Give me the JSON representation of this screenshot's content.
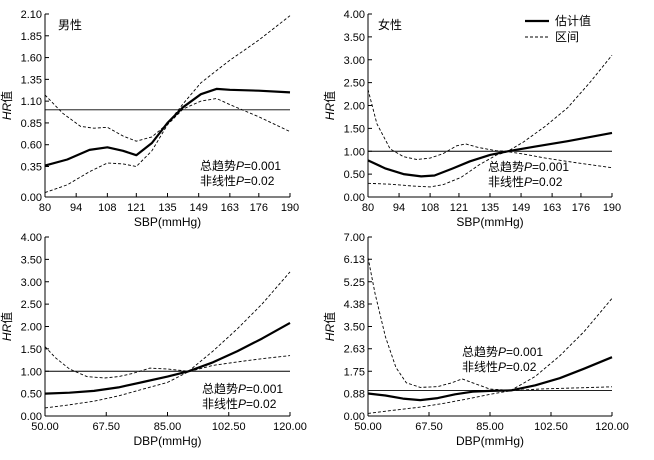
{
  "legend": {
    "entries": [
      {
        "label": "估计值",
        "style": "solid"
      },
      {
        "label": "区间",
        "style": "dashed"
      }
    ]
  },
  "chart_data": [
    {
      "type": "line",
      "panel_label": "男性",
      "xlabel": "SBP(mmHg)",
      "ylabel_italic": "HR",
      "ylabel_suffix": "值",
      "xlim": [
        80,
        190
      ],
      "ylim": [
        0,
        2.1
      ],
      "xticks": [
        80,
        94,
        108,
        121,
        135,
        149,
        163,
        176,
        190
      ],
      "xtick_labels": [
        "80",
        "94",
        "108",
        "121",
        "135",
        "149",
        "163",
        "176",
        "190"
      ],
      "yticks": [
        0,
        0.35,
        0.6,
        0.85,
        1.1,
        1.35,
        1.6,
        1.85,
        2.1
      ],
      "ytick_labels": [
        "0.00",
        "0.35",
        "0.60",
        "0.85",
        "1.10",
        "1.35",
        "1.60",
        "1.85",
        "2.10"
      ],
      "reference_line": 1.0,
      "annotation_lines": [
        "总趋势P=0.001",
        "非线性P=0.02"
      ],
      "series": [
        {
          "name": "估计值",
          "style": "solid",
          "x": [
            80,
            90,
            100,
            108,
            115,
            121,
            128,
            135,
            142,
            150,
            157,
            163,
            176,
            190
          ],
          "y": [
            0.36,
            0.43,
            0.54,
            0.57,
            0.53,
            0.48,
            0.62,
            0.85,
            1.03,
            1.18,
            1.24,
            1.23,
            1.22,
            1.2
          ]
        },
        {
          "name": "区间-上限",
          "style": "dashed",
          "x": [
            80,
            88,
            96,
            102,
            108,
            115,
            121,
            128,
            135,
            142,
            150,
            157,
            163,
            176,
            190
          ],
          "y": [
            1.17,
            0.96,
            0.81,
            0.79,
            0.8,
            0.7,
            0.64,
            0.69,
            0.84,
            1.07,
            1.31,
            1.45,
            1.57,
            1.8,
            2.08
          ]
        },
        {
          "name": "区间-下限",
          "style": "dashed",
          "x": [
            80,
            90,
            100,
            108,
            115,
            121,
            128,
            135,
            142,
            150,
            157,
            163,
            176,
            190
          ],
          "y": [
            0.05,
            0.14,
            0.29,
            0.39,
            0.38,
            0.35,
            0.53,
            0.83,
            1.01,
            1.1,
            1.13,
            1.06,
            0.92,
            0.75
          ]
        }
      ]
    },
    {
      "type": "line",
      "panel_label": "女性",
      "xlabel": "SBP(mmHg)",
      "ylabel_italic": "HR",
      "ylabel_suffix": "值",
      "xlim": [
        80,
        190
      ],
      "ylim": [
        0,
        4.0
      ],
      "xticks": [
        80,
        94,
        108,
        121,
        135,
        149,
        163,
        176,
        190
      ],
      "xtick_labels": [
        "80",
        "94",
        "108",
        "121",
        "135",
        "149",
        "163",
        "176",
        "190"
      ],
      "yticks": [
        0,
        0.5,
        1.0,
        1.5,
        2.0,
        2.5,
        3.0,
        3.5,
        4.0
      ],
      "ytick_labels": [
        "0.00",
        "0.50",
        "1.00",
        "1.50",
        "2.00",
        "2.50",
        "3.00",
        "3.50",
        "4.00"
      ],
      "reference_line": 1.0,
      "annotation_lines": [
        "总趋势P=0.001",
        "非线性P=0.02"
      ],
      "series": [
        {
          "name": "估计值",
          "style": "solid",
          "x": [
            80,
            88,
            96,
            104,
            110,
            118,
            126,
            135,
            143,
            155,
            170,
            190
          ],
          "y": [
            0.8,
            0.62,
            0.5,
            0.45,
            0.47,
            0.62,
            0.78,
            0.92,
            1.0,
            1.1,
            1.22,
            1.4
          ]
        },
        {
          "name": "区间-上限",
          "style": "dashed",
          "x": [
            80,
            84,
            90,
            96,
            102,
            108,
            114,
            120,
            124,
            130,
            138,
            143,
            150,
            160,
            170,
            180,
            190
          ],
          "y": [
            2.35,
            1.6,
            1.05,
            0.88,
            0.82,
            0.85,
            0.95,
            1.12,
            1.16,
            1.08,
            1.01,
            1.0,
            1.2,
            1.55,
            1.95,
            2.5,
            3.1
          ]
        },
        {
          "name": "区间-下限",
          "style": "dashed",
          "x": [
            80,
            90,
            100,
            108,
            114,
            122,
            130,
            138,
            143,
            150,
            160,
            175,
            190
          ],
          "y": [
            0.3,
            0.28,
            0.24,
            0.22,
            0.27,
            0.43,
            0.7,
            0.92,
            0.99,
            0.94,
            0.85,
            0.74,
            0.64
          ]
        }
      ]
    },
    {
      "type": "line",
      "panel_label": "",
      "xlabel": "DBP(mmHg)",
      "ylabel_italic": "HR",
      "ylabel_suffix": "值",
      "xlim": [
        50,
        120
      ],
      "ylim": [
        0,
        4.0
      ],
      "xticks": [
        50,
        67.5,
        85,
        102.5,
        120
      ],
      "xtick_labels": [
        "50.00",
        "67.50",
        "85.00",
        "102.50",
        "120.00"
      ],
      "yticks": [
        0,
        0.5,
        1.0,
        1.5,
        2.0,
        2.5,
        3.0,
        3.5,
        4.0
      ],
      "ytick_labels": [
        "0.00",
        "0.50",
        "1.00",
        "1.50",
        "2.00",
        "2.50",
        "3.00",
        "3.50",
        "4.00"
      ],
      "reference_line": 1.0,
      "annotation_lines": [
        "总趋势P=0.001",
        "非线性P=0.02"
      ],
      "series": [
        {
          "name": "估计值",
          "style": "solid",
          "x": [
            50,
            57,
            64,
            71,
            78,
            85,
            91,
            98,
            105,
            112,
            120
          ],
          "y": [
            0.5,
            0.52,
            0.56,
            0.64,
            0.76,
            0.88,
            1.0,
            1.2,
            1.45,
            1.73,
            2.08
          ]
        },
        {
          "name": "区间-上限",
          "style": "dashed",
          "x": [
            50,
            53,
            57,
            62,
            67,
            71,
            75,
            80,
            85,
            91,
            98,
            105,
            112,
            120
          ],
          "y": [
            1.55,
            1.3,
            1.05,
            0.88,
            0.85,
            0.88,
            0.95,
            1.07,
            1.05,
            1.0,
            1.45,
            1.95,
            2.5,
            3.22
          ]
        },
        {
          "name": "区间-下限",
          "style": "dashed",
          "x": [
            50,
            57,
            64,
            71,
            78,
            85,
            91,
            98,
            105,
            112,
            120
          ],
          "y": [
            0.18,
            0.25,
            0.33,
            0.45,
            0.6,
            0.75,
            0.99,
            1.13,
            1.21,
            1.28,
            1.35
          ]
        }
      ]
    },
    {
      "type": "line",
      "panel_label": "",
      "xlabel": "DBP(mmHg)",
      "ylabel_italic": "HR",
      "ylabel_suffix": "值",
      "xlim": [
        50,
        120
      ],
      "ylim": [
        0,
        7.0
      ],
      "xticks": [
        50,
        67.5,
        85,
        102.5,
        120
      ],
      "xtick_labels": [
        "50.00",
        "67.50",
        "85.00",
        "102.50",
        "120.00"
      ],
      "yticks": [
        0,
        0.88,
        1.75,
        2.63,
        3.5,
        4.38,
        5.25,
        6.13,
        7.0
      ],
      "ytick_labels": [
        "0.00",
        "0.88",
        "1.75",
        "2.63",
        "3.50",
        "4.38",
        "5.25",
        "6.13",
        "7.00"
      ],
      "reference_line": 1.0,
      "annotation_lines": [
        "总趋势P=0.001",
        "非线性P=0.02"
      ],
      "series": [
        {
          "name": "估计值",
          "style": "solid",
          "x": [
            50,
            55,
            60,
            65,
            70,
            75,
            80,
            85,
            91,
            98,
            105,
            112,
            120
          ],
          "y": [
            0.88,
            0.8,
            0.68,
            0.62,
            0.7,
            0.85,
            0.95,
            0.98,
            1.0,
            1.2,
            1.48,
            1.85,
            2.3
          ]
        },
        {
          "name": "区间-上限",
          "style": "dashed",
          "x": [
            50,
            52,
            55,
            58,
            61,
            65,
            70,
            74,
            77,
            80,
            85,
            91,
            98,
            105,
            112,
            120
          ],
          "y": [
            6.2,
            4.8,
            3.1,
            1.9,
            1.3,
            1.12,
            1.15,
            1.3,
            1.45,
            1.3,
            1.05,
            1.0,
            1.55,
            2.35,
            3.3,
            4.6
          ]
        },
        {
          "name": "区间-下限",
          "style": "dashed",
          "x": [
            50,
            57,
            65,
            72,
            79,
            85,
            91,
            100,
            110,
            120
          ],
          "y": [
            0.1,
            0.22,
            0.35,
            0.5,
            0.68,
            0.85,
            0.99,
            1.06,
            1.1,
            1.14
          ]
        }
      ]
    }
  ]
}
